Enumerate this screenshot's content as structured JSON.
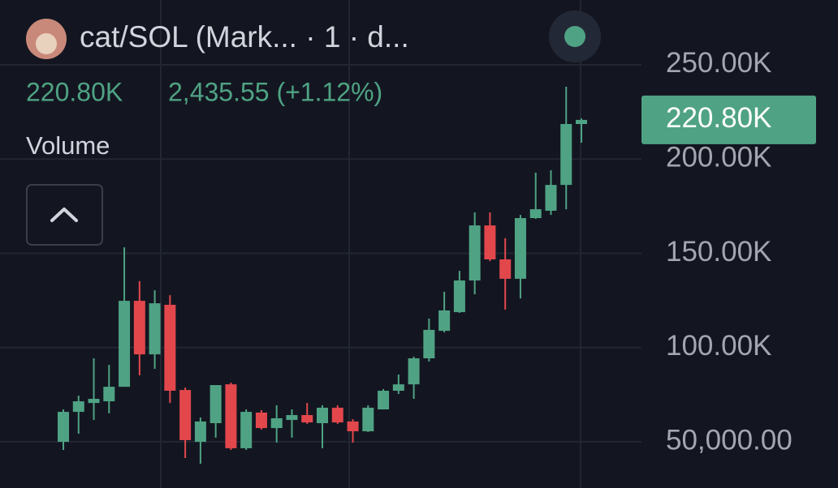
{
  "chart_data": {
    "type": "candlestick",
    "title": "cat/SOL (Mark...  · 1 · d...",
    "header_price": "2,435.55 (+1.12%)",
    "indicator": "Volume",
    "last_price": {
      "value": 220800,
      "label": "220.80K"
    },
    "up_color": "#4fa384",
    "down_color": "#e2474c",
    "open": [
      50000,
      65900,
      70600,
      71500,
      79200,
      124800,
      96400,
      122700,
      77500,
      50000,
      59900,
      80500,
      46600,
      65500,
      57300,
      61600,
      64200,
      59900,
      68100,
      60800,
      55600,
      67200,
      77100,
      80500,
      94300,
      108900,
      118800,
      135600,
      164800,
      146800,
      136500,
      168700,
      172600,
      186300,
      218600
    ],
    "high": [
      67200,
      74500,
      94300,
      90800,
      153200,
      135200,
      130400,
      127800,
      78800,
      62900,
      80100,
      81400,
      67200,
      66800,
      69400,
      67200,
      70600,
      69400,
      69400,
      62000,
      69400,
      78000,
      85700,
      95200,
      115400,
      129600,
      140700,
      171700,
      171700,
      158000,
      170400,
      192800,
      194100,
      238400,
      221600
    ],
    "low": [
      45700,
      54300,
      61600,
      65100,
      79200,
      85300,
      88700,
      70600,
      41400,
      38400,
      52200,
      45700,
      45700,
      56500,
      49600,
      52200,
      59500,
      46600,
      59500,
      49600,
      55200,
      67200,
      75400,
      72800,
      92600,
      108100,
      118400,
      128300,
      145900,
      120100,
      126100,
      168300,
      170400,
      173400,
      208700
    ],
    "close": [
      65900,
      71500,
      72800,
      79200,
      124800,
      96400,
      123500,
      77100,
      50900,
      60800,
      80100,
      46600,
      65900,
      57300,
      62500,
      64200,
      60300,
      68100,
      60300,
      55600,
      68100,
      77100,
      80500,
      94300,
      109400,
      119700,
      135600,
      164800,
      146800,
      136500,
      168700,
      173400,
      186300,
      218600,
      220800
    ],
    "ylim": [
      25500,
      284400
    ],
    "yticks": [
      {
        "value": 50000,
        "label": "50,000.00"
      },
      {
        "value": 100000,
        "label": "100.00K"
      },
      {
        "value": 150000,
        "label": "150.00K"
      },
      {
        "value": 200000,
        "label": "200.00K"
      },
      {
        "value": 250000,
        "label": "250.00K"
      }
    ],
    "grid": true
  }
}
